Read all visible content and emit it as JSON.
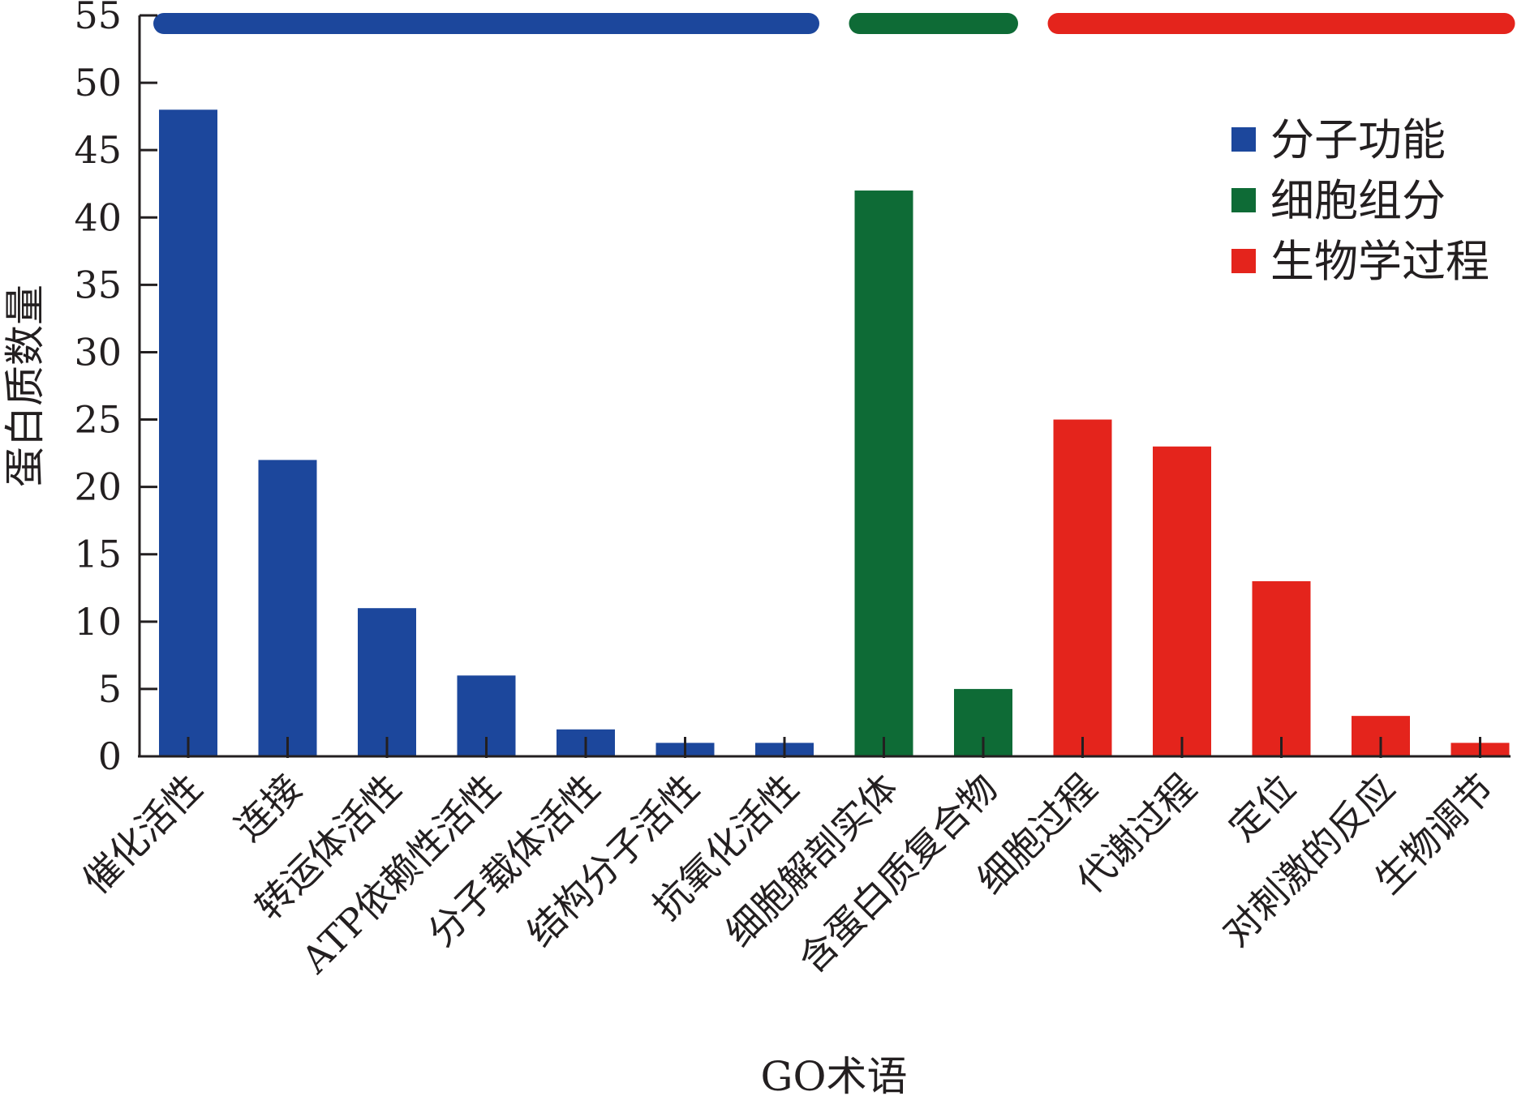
{
  "chart_data": {
    "type": "bar",
    "title": "",
    "xlabel": "GO术语",
    "ylabel": "蛋白质数量",
    "ylim": [
      0,
      55
    ],
    "yticks": [
      0,
      5,
      10,
      15,
      20,
      25,
      30,
      35,
      40,
      45,
      50,
      55
    ],
    "grid": false,
    "legend_position": "top-right",
    "categories": [
      "催化活性",
      "连接",
      "转运体活性",
      "ATP依赖性活性",
      "分子载体活性",
      "结构分子活性",
      "抗氧化活性",
      "细胞解剖实体",
      "含蛋白质复合物",
      "细胞过程",
      "代谢过程",
      "定位",
      "对刺激的反应",
      "生物调节"
    ],
    "values": [
      48,
      22,
      11,
      6,
      2,
      1,
      1,
      42,
      5,
      25,
      23,
      13,
      3,
      1
    ],
    "groups": [
      {
        "name": "分子功能",
        "color": "#1c479c",
        "start": 0,
        "end": 6
      },
      {
        "name": "细胞组分",
        "color": "#0e6b36",
        "start": 7,
        "end": 8
      },
      {
        "name": "生物学过程",
        "color": "#e4241c",
        "start": 9,
        "end": 13
      }
    ]
  }
}
